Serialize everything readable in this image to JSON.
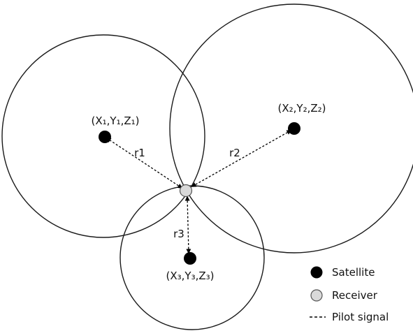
{
  "satellites": [
    {
      "label": "(X₁,Y₁,Z₁)",
      "range_label": "r1"
    },
    {
      "label": "(X₂,Y₂,Z₂)",
      "range_label": "r2"
    },
    {
      "label": "(X₃,Y₃,Z₃)",
      "range_label": "r3"
    }
  ],
  "legend": {
    "satellite": "Satellite",
    "receiver": "Receiver",
    "pilot_signal": "Pilot signal"
  },
  "colors": {
    "satellite": "#000000",
    "receiver": "#d9d9d9",
    "circle_stroke": "#1a1a1a"
  }
}
